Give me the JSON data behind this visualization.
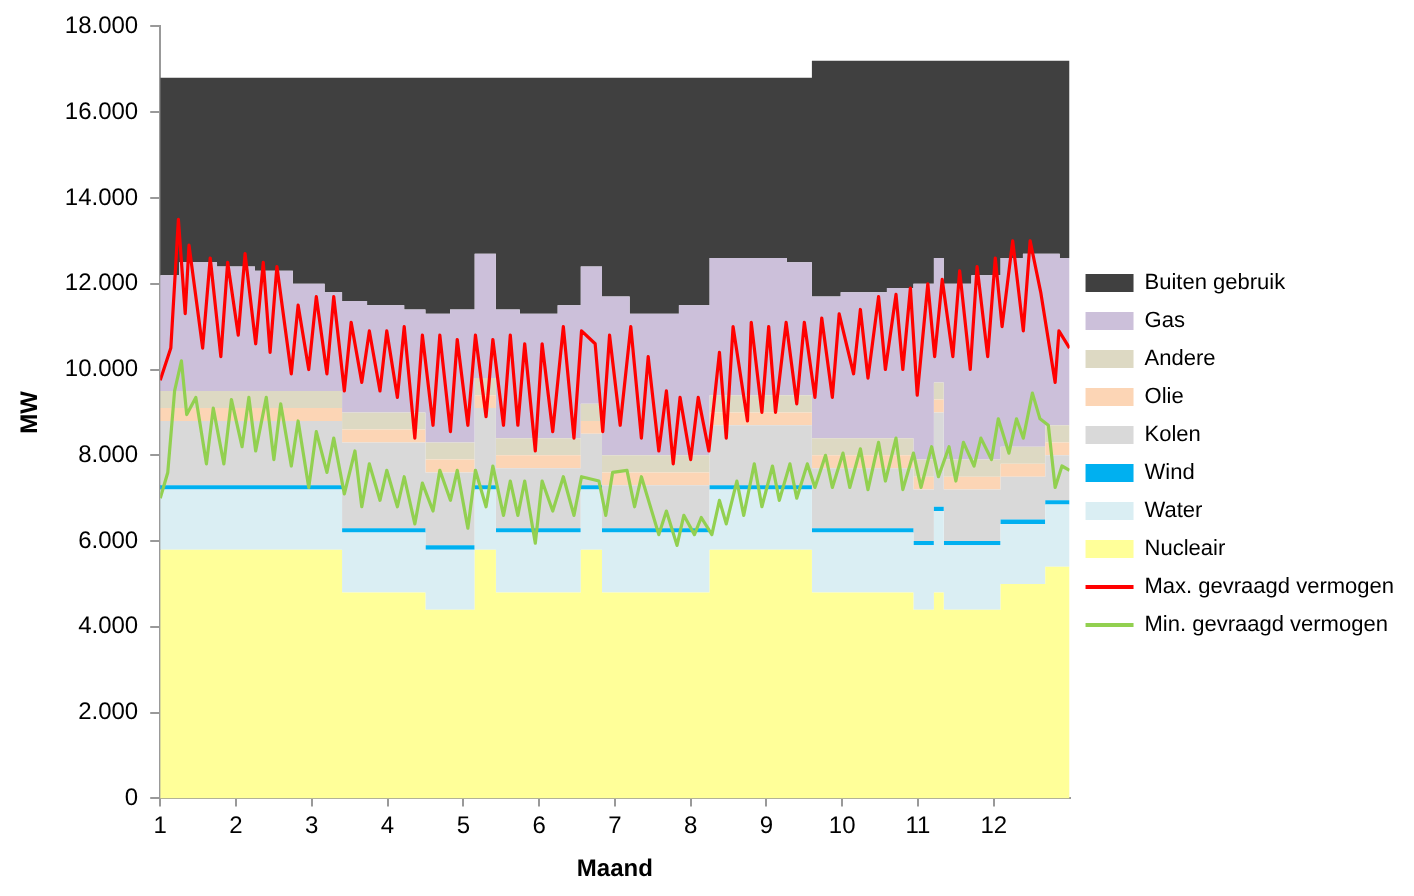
{
  "chart_data": {
    "type": "area",
    "stacked": true,
    "xlabel": "Maand",
    "ylabel": "MW",
    "legend": "right",
    "grid": false,
    "marker": "none",
    "line_style": "solid",
    "x": [
      1,
      1.5,
      2,
      2.5,
      3,
      3.34,
      3.46,
      4,
      4.44,
      4.56,
      5.09,
      5.21,
      5.37,
      5.49,
      6,
      6.49,
      6.61,
      6.77,
      6.89,
      7.5,
      8.19,
      8.31,
      9,
      9.54,
      9.66,
      10.3,
      10.88,
      11,
      11.16,
      11.26,
      11.3,
      11.38,
      12.03,
      12.15,
      12.62,
      12.74,
      13
    ],
    "xlim": [
      1,
      13
    ],
    "xticks": [
      1,
      2,
      3,
      4,
      5,
      6,
      7,
      8,
      9,
      10,
      11,
      12
    ],
    "ylim": [
      0,
      18000
    ],
    "yticks": [
      0,
      {
        "value": 2000,
        "label": "2.000"
      },
      {
        "value": 4000,
        "label": "4.000"
      },
      {
        "value": 6000,
        "label": "6.000"
      },
      {
        "value": 8000,
        "label": "8.000"
      },
      {
        "value": 10000,
        "label": "10.000"
      },
      {
        "value": 12000,
        "label": "12.000"
      },
      {
        "value": 14000,
        "label": "14.000"
      },
      {
        "value": 16000,
        "label": "16.000"
      },
      {
        "value": 18000,
        "label": "18.000"
      }
    ],
    "series": [
      {
        "name": "Nucleair",
        "color": "#ffff99",
        "values": [
          5800,
          5800,
          5800,
          5800,
          5800,
          5800,
          4800,
          4800,
          4800,
          4400,
          4400,
          5800,
          5800,
          4800,
          4800,
          4800,
          5800,
          5800,
          4800,
          4800,
          4800,
          5800,
          5800,
          5800,
          4800,
          4800,
          4800,
          4400,
          4400,
          4800,
          4800,
          4400,
          4400,
          5000,
          5000,
          5400,
          5400
        ]
      },
      {
        "name": "Water",
        "color": "#daeef3",
        "values": [
          1400,
          1400,
          1400,
          1400,
          1400,
          1400,
          1400,
          1400,
          1400,
          1400,
          1400,
          1400,
          1400,
          1400,
          1400,
          1400,
          1400,
          1400,
          1400,
          1400,
          1400,
          1400,
          1400,
          1400,
          1400,
          1400,
          1400,
          1500,
          1500,
          1900,
          1900,
          1500,
          1500,
          1400,
          1400,
          1450,
          1450
        ]
      },
      {
        "name": "Wind",
        "color": "#00b0f0",
        "values": [
          100,
          100,
          100,
          100,
          100,
          100,
          100,
          100,
          100,
          100,
          100,
          100,
          100,
          100,
          100,
          100,
          100,
          100,
          100,
          100,
          100,
          100,
          100,
          100,
          100,
          100,
          100,
          100,
          100,
          100,
          100,
          100,
          100,
          100,
          100,
          100,
          100
        ]
      },
      {
        "name": "Kolen",
        "color": "#d9d9d9",
        "values": [
          1500,
          1500,
          1500,
          1500,
          1500,
          1500,
          2000,
          2000,
          2000,
          1700,
          1700,
          1800,
          1800,
          1400,
          1400,
          1400,
          1200,
          1200,
          1000,
          1000,
          1000,
          1400,
          1400,
          1400,
          1400,
          1400,
          1400,
          1200,
          1200,
          2200,
          2200,
          1200,
          1200,
          1000,
          1000,
          1050,
          1050
        ]
      },
      {
        "name": "Olie",
        "color": "#fcd5b5",
        "values": [
          300,
          300,
          300,
          300,
          300,
          300,
          300,
          300,
          300,
          300,
          300,
          300,
          300,
          300,
          300,
          300,
          300,
          300,
          300,
          300,
          300,
          300,
          300,
          300,
          300,
          300,
          300,
          300,
          300,
          300,
          300,
          300,
          300,
          300,
          300,
          300,
          300
        ]
      },
      {
        "name": "Andere",
        "color": "#ddd9c3",
        "values": [
          400,
          400,
          400,
          400,
          400,
          400,
          400,
          400,
          400,
          400,
          400,
          400,
          400,
          400,
          400,
          400,
          400,
          400,
          400,
          400,
          400,
          400,
          400,
          400,
          400,
          400,
          400,
          400,
          400,
          400,
          400,
          400,
          400,
          400,
          400,
          400,
          400
        ]
      },
      {
        "name": "Gas",
        "color": "#ccc0da",
        "values": [
          2700,
          3000,
          2900,
          2800,
          2500,
          2300,
          2600,
          2500,
          2400,
          3000,
          3100,
          2900,
          2900,
          3000,
          2900,
          3100,
          3200,
          3200,
          3700,
          3300,
          3500,
          3200,
          3200,
          3100,
          3300,
          3400,
          3500,
          4100,
          4100,
          2900,
          2900,
          4100,
          4300,
          4400,
          4500,
          4000,
          3900
        ]
      },
      {
        "name": "Buiten gebruik",
        "color": "#404040",
        "values": [
          4600,
          4300,
          4400,
          4500,
          4800,
          5000,
          5200,
          5300,
          5400,
          5500,
          5400,
          4100,
          4100,
          5400,
          5500,
          5300,
          4400,
          4400,
          5100,
          5500,
          5300,
          4200,
          4200,
          4300,
          5500,
          5400,
          5300,
          5200,
          5200,
          4600,
          4600,
          5200,
          5000,
          4600,
          4500,
          4500,
          4600
        ]
      },
      {
        "name": "Max. gevraagd vermogen",
        "type": "line",
        "color": "#ff0000",
        "x": [
          1.0,
          1.14,
          1.24,
          1.33,
          1.38,
          1.56,
          1.66,
          1.8,
          1.89,
          2.03,
          2.12,
          2.26,
          2.36,
          2.45,
          2.54,
          2.73,
          2.82,
          2.96,
          3.06,
          3.2,
          3.29,
          3.43,
          3.52,
          3.66,
          3.76,
          3.9,
          3.99,
          4.13,
          4.22,
          4.36,
          4.46,
          4.6,
          4.69,
          4.83,
          4.92,
          5.06,
          5.16,
          5.3,
          5.39,
          5.53,
          5.62,
          5.72,
          5.81,
          5.95,
          6.04,
          6.18,
          6.32,
          6.46,
          6.56,
          6.74,
          6.84,
          6.93,
          7.07,
          7.21,
          7.35,
          7.44,
          7.58,
          7.68,
          7.77,
          7.86,
          8.0,
          8.1,
          8.24,
          8.38,
          8.47,
          8.56,
          8.75,
          8.8,
          8.94,
          9.03,
          9.12,
          9.26,
          9.4,
          9.5,
          9.64,
          9.73,
          9.87,
          9.96,
          10.15,
          10.24,
          10.34,
          10.48,
          10.57,
          10.71,
          10.8,
          10.9,
          10.99,
          11.13,
          11.22,
          11.32,
          11.46,
          11.55,
          11.69,
          11.78,
          11.92,
          12.02,
          12.11,
          12.25,
          12.39,
          12.48,
          12.62,
          12.81,
          12.86,
          13.0
        ],
        "values": [
          9750,
          10500,
          13500,
          11300,
          12900,
          10500,
          12600,
          10300,
          12500,
          10800,
          12700,
          10600,
          12500,
          10400,
          12400,
          9900,
          11500,
          10000,
          11700,
          9900,
          11700,
          9500,
          11100,
          9700,
          10900,
          9500,
          10900,
          9350,
          11000,
          8400,
          10800,
          8700,
          10800,
          8550,
          10700,
          8700,
          10800,
          8900,
          10700,
          8700,
          10800,
          8700,
          10600,
          8100,
          10600,
          8550,
          11000,
          8400,
          10900,
          10600,
          8550,
          10800,
          8700,
          11000,
          8400,
          10300,
          8100,
          9500,
          7800,
          9350,
          7900,
          9350,
          8100,
          10400,
          8400,
          11000,
          8800,
          11100,
          9000,
          11000,
          9000,
          11100,
          9200,
          11100,
          9350,
          11200,
          9350,
          11300,
          9900,
          11400,
          9800,
          11700,
          10000,
          11750,
          10000,
          11900,
          9400,
          12000,
          10300,
          12100,
          10300,
          12300,
          10000,
          12400,
          10300,
          12600,
          11000,
          13000,
          10900,
          13000,
          11800,
          9700,
          10900,
          10500
        ]
      },
      {
        "name": "Min. gevraagd vermogen",
        "type": "line",
        "color": "#92d050",
        "x": [
          1.0,
          1.1,
          1.19,
          1.28,
          1.35,
          1.47,
          1.61,
          1.7,
          1.84,
          1.94,
          2.08,
          2.17,
          2.26,
          2.4,
          2.5,
          2.59,
          2.73,
          2.82,
          2.96,
          3.06,
          3.2,
          3.29,
          3.43,
          3.57,
          3.66,
          3.76,
          3.9,
          3.99,
          4.13,
          4.22,
          4.36,
          4.46,
          4.6,
          4.69,
          4.83,
          4.92,
          5.06,
          5.16,
          5.3,
          5.39,
          5.53,
          5.62,
          5.72,
          5.81,
          5.95,
          6.04,
          6.18,
          6.32,
          6.46,
          6.56,
          6.79,
          6.88,
          6.97,
          7.16,
          7.26,
          7.35,
          7.58,
          7.68,
          7.82,
          7.91,
          8.05,
          8.14,
          8.28,
          8.38,
          8.47,
          8.61,
          8.7,
          8.84,
          8.94,
          9.08,
          9.17,
          9.31,
          9.4,
          9.54,
          9.64,
          9.78,
          9.87,
          10.01,
          10.1,
          10.24,
          10.34,
          10.48,
          10.57,
          10.71,
          10.8,
          10.94,
          11.04,
          11.18,
          11.27,
          11.41,
          11.5,
          11.6,
          11.74,
          11.83,
          11.97,
          12.06,
          12.2,
          12.3,
          12.39,
          12.51,
          12.61,
          12.72,
          12.81,
          12.9,
          13.0
        ],
        "values": [
          7000,
          7600,
          9500,
          10200,
          8950,
          9350,
          7800,
          9100,
          7800,
          9300,
          8200,
          9350,
          8100,
          9350,
          7900,
          9200,
          7750,
          8800,
          7250,
          8550,
          7600,
          8400,
          7100,
          8100,
          6800,
          7800,
          6950,
          7650,
          6800,
          7500,
          6400,
          7350,
          6700,
          7650,
          6950,
          7650,
          6300,
          7650,
          6800,
          7750,
          6600,
          7400,
          6600,
          7400,
          5950,
          7400,
          6700,
          7500,
          6600,
          7500,
          7400,
          6600,
          7600,
          7650,
          6800,
          7500,
          6150,
          6700,
          5900,
          6600,
          6150,
          6550,
          6150,
          6950,
          6400,
          7400,
          6600,
          7800,
          6800,
          7750,
          6950,
          7800,
          7000,
          7800,
          7250,
          8000,
          7250,
          8050,
          7250,
          8150,
          7200,
          8300,
          7400,
          8400,
          7200,
          8050,
          7250,
          8200,
          7500,
          8200,
          7400,
          8300,
          7750,
          8400,
          7900,
          8850,
          8050,
          8850,
          8400,
          9450,
          8850,
          8700,
          7250,
          7750,
          7650
        ]
      }
    ]
  }
}
